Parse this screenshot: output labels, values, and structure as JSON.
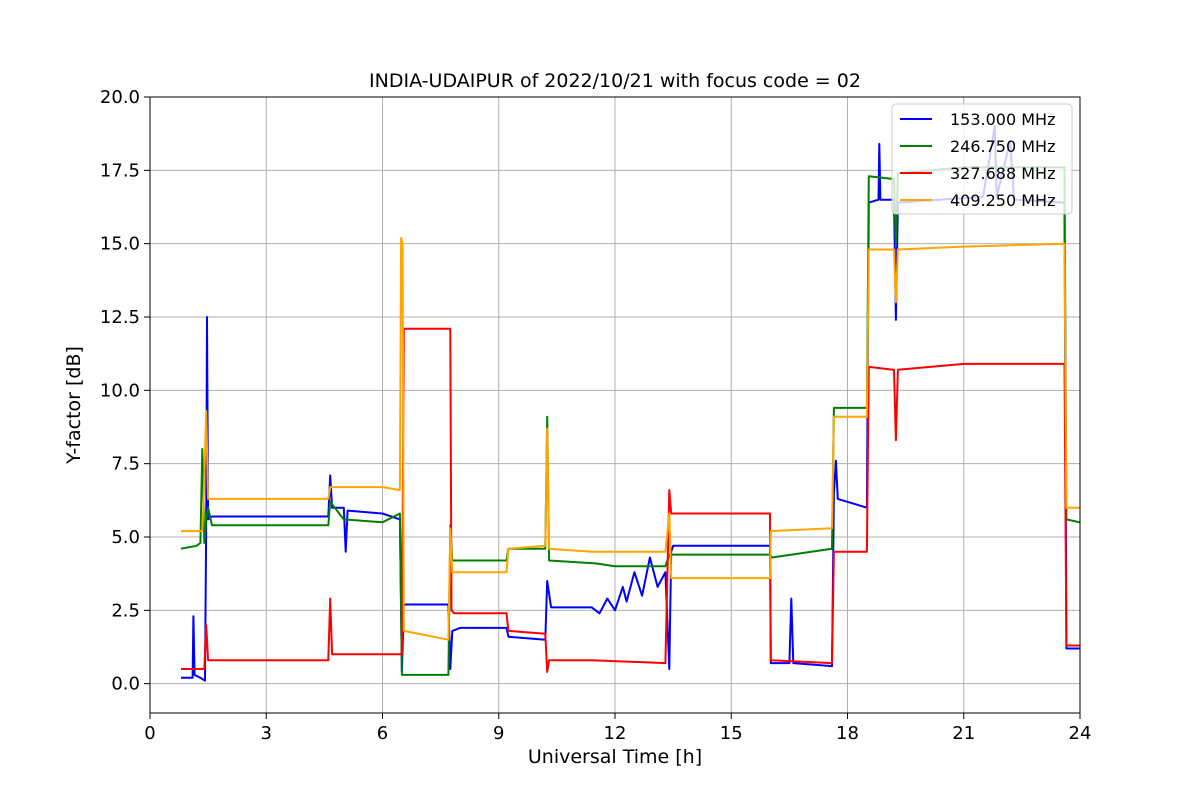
{
  "chart_data": {
    "type": "line",
    "title": "INDIA-UDAIPUR of 2022/10/21 with focus code = 02",
    "xlabel": "Universal Time [h]",
    "ylabel": "Y-factor [dB]",
    "xlim": [
      0,
      24
    ],
    "ylim": [
      -1.0,
      20.0
    ],
    "xticks": [
      0,
      3,
      6,
      9,
      12,
      15,
      18,
      21,
      24
    ],
    "yticks": [
      0.0,
      2.5,
      5.0,
      7.5,
      10.0,
      12.5,
      15.0,
      17.5,
      20.0
    ],
    "xtick_labels": [
      "0",
      "3",
      "6",
      "9",
      "12",
      "15",
      "18",
      "21",
      "24"
    ],
    "ytick_labels": [
      "0.0",
      "2.5",
      "5.0",
      "7.5",
      "10.0",
      "12.5",
      "15.0",
      "17.5",
      "20.0"
    ],
    "grid": true,
    "legend_position": "top-right",
    "series": [
      {
        "name": "153.000 MHz",
        "color": "#0000ff",
        "points": [
          [
            0.8,
            0.2
          ],
          [
            1.1,
            0.2
          ],
          [
            1.12,
            2.3
          ],
          [
            1.15,
            0.3
          ],
          [
            1.3,
            0.2
          ],
          [
            1.42,
            0.1
          ],
          [
            1.45,
            5.5
          ],
          [
            1.47,
            12.5
          ],
          [
            1.5,
            5.6
          ],
          [
            1.6,
            5.7
          ],
          [
            4.6,
            5.7
          ],
          [
            4.65,
            7.1
          ],
          [
            4.7,
            6.0
          ],
          [
            5.0,
            6.0
          ],
          [
            5.05,
            4.5
          ],
          [
            5.1,
            5.9
          ],
          [
            6.0,
            5.8
          ],
          [
            6.45,
            5.6
          ],
          [
            6.5,
            0.4
          ],
          [
            6.55,
            2.7
          ],
          [
            7.7,
            2.7
          ],
          [
            7.75,
            0.5
          ],
          [
            7.8,
            1.8
          ],
          [
            8.0,
            1.9
          ],
          [
            9.2,
            1.9
          ],
          [
            9.25,
            1.6
          ],
          [
            10.2,
            1.5
          ],
          [
            10.25,
            3.5
          ],
          [
            10.35,
            2.6
          ],
          [
            11.4,
            2.6
          ],
          [
            11.6,
            2.4
          ],
          [
            11.8,
            2.9
          ],
          [
            12.0,
            2.5
          ],
          [
            12.2,
            3.3
          ],
          [
            12.3,
            2.8
          ],
          [
            12.5,
            3.8
          ],
          [
            12.7,
            3.0
          ],
          [
            12.9,
            4.3
          ],
          [
            13.1,
            3.3
          ],
          [
            13.3,
            3.8
          ],
          [
            13.4,
            0.5
          ],
          [
            13.45,
            4.5
          ],
          [
            13.5,
            4.7
          ],
          [
            16.0,
            4.7
          ],
          [
            16.02,
            0.7
          ],
          [
            16.5,
            0.7
          ],
          [
            16.55,
            2.9
          ],
          [
            16.6,
            0.7
          ],
          [
            17.6,
            0.6
          ],
          [
            17.65,
            6.5
          ],
          [
            17.7,
            7.6
          ],
          [
            17.75,
            6.3
          ],
          [
            18.5,
            6.0
          ],
          [
            18.55,
            16.4
          ],
          [
            18.8,
            16.5
          ],
          [
            18.82,
            18.4
          ],
          [
            18.85,
            16.5
          ],
          [
            19.2,
            16.5
          ],
          [
            19.25,
            12.4
          ],
          [
            19.3,
            16.4
          ],
          [
            21.5,
            16.6
          ],
          [
            21.8,
            19.0
          ],
          [
            21.85,
            16.6
          ],
          [
            22.2,
            18.5
          ],
          [
            22.3,
            16.5
          ],
          [
            23.6,
            16.4
          ],
          [
            23.65,
            1.2
          ],
          [
            24.0,
            1.2
          ]
        ]
      },
      {
        "name": "246.750 MHz",
        "color": "#008000",
        "points": [
          [
            0.8,
            4.6
          ],
          [
            1.2,
            4.7
          ],
          [
            1.3,
            4.8
          ],
          [
            1.35,
            8.0
          ],
          [
            1.4,
            4.8
          ],
          [
            1.45,
            5.6
          ],
          [
            1.5,
            6.0
          ],
          [
            1.6,
            5.4
          ],
          [
            4.6,
            5.4
          ],
          [
            4.65,
            6.2
          ],
          [
            5.0,
            5.6
          ],
          [
            6.0,
            5.5
          ],
          [
            6.45,
            5.8
          ],
          [
            6.5,
            0.3
          ],
          [
            6.55,
            0.3
          ],
          [
            7.7,
            0.3
          ],
          [
            7.75,
            5.4
          ],
          [
            7.8,
            4.2
          ],
          [
            9.2,
            4.2
          ],
          [
            9.25,
            4.6
          ],
          [
            10.2,
            4.6
          ],
          [
            10.25,
            9.1
          ],
          [
            10.3,
            4.2
          ],
          [
            11.5,
            4.1
          ],
          [
            12.0,
            4.0
          ],
          [
            13.3,
            4.0
          ],
          [
            13.4,
            4.4
          ],
          [
            16.0,
            4.4
          ],
          [
            16.05,
            4.3
          ],
          [
            17.6,
            4.6
          ],
          [
            17.65,
            9.4
          ],
          [
            18.5,
            9.4
          ],
          [
            18.55,
            17.3
          ],
          [
            19.2,
            17.2
          ],
          [
            19.25,
            15.0
          ],
          [
            19.3,
            17.4
          ],
          [
            21.0,
            17.6
          ],
          [
            23.6,
            17.6
          ],
          [
            23.65,
            5.6
          ],
          [
            24.0,
            5.5
          ]
        ]
      },
      {
        "name": "327.688 MHz",
        "color": "#ff0000",
        "points": [
          [
            0.8,
            0.5
          ],
          [
            1.4,
            0.5
          ],
          [
            1.45,
            2.0
          ],
          [
            1.5,
            0.8
          ],
          [
            1.6,
            0.8
          ],
          [
            4.6,
            0.8
          ],
          [
            4.65,
            2.9
          ],
          [
            4.7,
            1.0
          ],
          [
            6.0,
            1.0
          ],
          [
            6.5,
            1.0
          ],
          [
            6.55,
            12.1
          ],
          [
            7.75,
            12.1
          ],
          [
            7.78,
            2.5
          ],
          [
            7.85,
            2.4
          ],
          [
            9.2,
            2.4
          ],
          [
            9.25,
            1.8
          ],
          [
            10.2,
            1.7
          ],
          [
            10.25,
            0.4
          ],
          [
            10.3,
            0.8
          ],
          [
            11.4,
            0.8
          ],
          [
            13.3,
            0.7
          ],
          [
            13.4,
            6.6
          ],
          [
            13.45,
            5.8
          ],
          [
            16.0,
            5.8
          ],
          [
            16.02,
            0.8
          ],
          [
            17.6,
            0.7
          ],
          [
            17.65,
            4.5
          ],
          [
            18.5,
            4.5
          ],
          [
            18.55,
            10.8
          ],
          [
            19.2,
            10.7
          ],
          [
            19.25,
            8.3
          ],
          [
            19.3,
            10.7
          ],
          [
            21.0,
            10.9
          ],
          [
            23.6,
            10.9
          ],
          [
            23.65,
            1.3
          ],
          [
            24.0,
            1.3
          ]
        ]
      },
      {
        "name": "409.250 MHz",
        "color": "#ffa500",
        "points": [
          [
            0.8,
            5.2
          ],
          [
            1.35,
            5.2
          ],
          [
            1.4,
            7.0
          ],
          [
            1.45,
            9.3
          ],
          [
            1.5,
            6.3
          ],
          [
            1.6,
            6.3
          ],
          [
            4.6,
            6.3
          ],
          [
            4.65,
            6.7
          ],
          [
            5.0,
            6.7
          ],
          [
            6.0,
            6.7
          ],
          [
            6.45,
            6.6
          ],
          [
            6.48,
            15.2
          ],
          [
            6.52,
            15.0
          ],
          [
            6.55,
            1.8
          ],
          [
            7.7,
            1.5
          ],
          [
            7.75,
            5.3
          ],
          [
            7.8,
            3.8
          ],
          [
            9.2,
            3.8
          ],
          [
            9.25,
            4.6
          ],
          [
            10.2,
            4.7
          ],
          [
            10.25,
            8.7
          ],
          [
            10.3,
            4.6
          ],
          [
            11.4,
            4.5
          ],
          [
            13.3,
            4.5
          ],
          [
            13.4,
            5.8
          ],
          [
            13.45,
            3.6
          ],
          [
            16.0,
            3.6
          ],
          [
            16.02,
            5.2
          ],
          [
            17.6,
            5.3
          ],
          [
            17.65,
            9.1
          ],
          [
            18.5,
            9.1
          ],
          [
            18.55,
            14.8
          ],
          [
            19.2,
            14.8
          ],
          [
            19.25,
            13.0
          ],
          [
            19.3,
            14.8
          ],
          [
            21.0,
            14.9
          ],
          [
            23.6,
            15.0
          ],
          [
            23.65,
            6.0
          ],
          [
            24.0,
            6.0
          ]
        ]
      }
    ]
  }
}
